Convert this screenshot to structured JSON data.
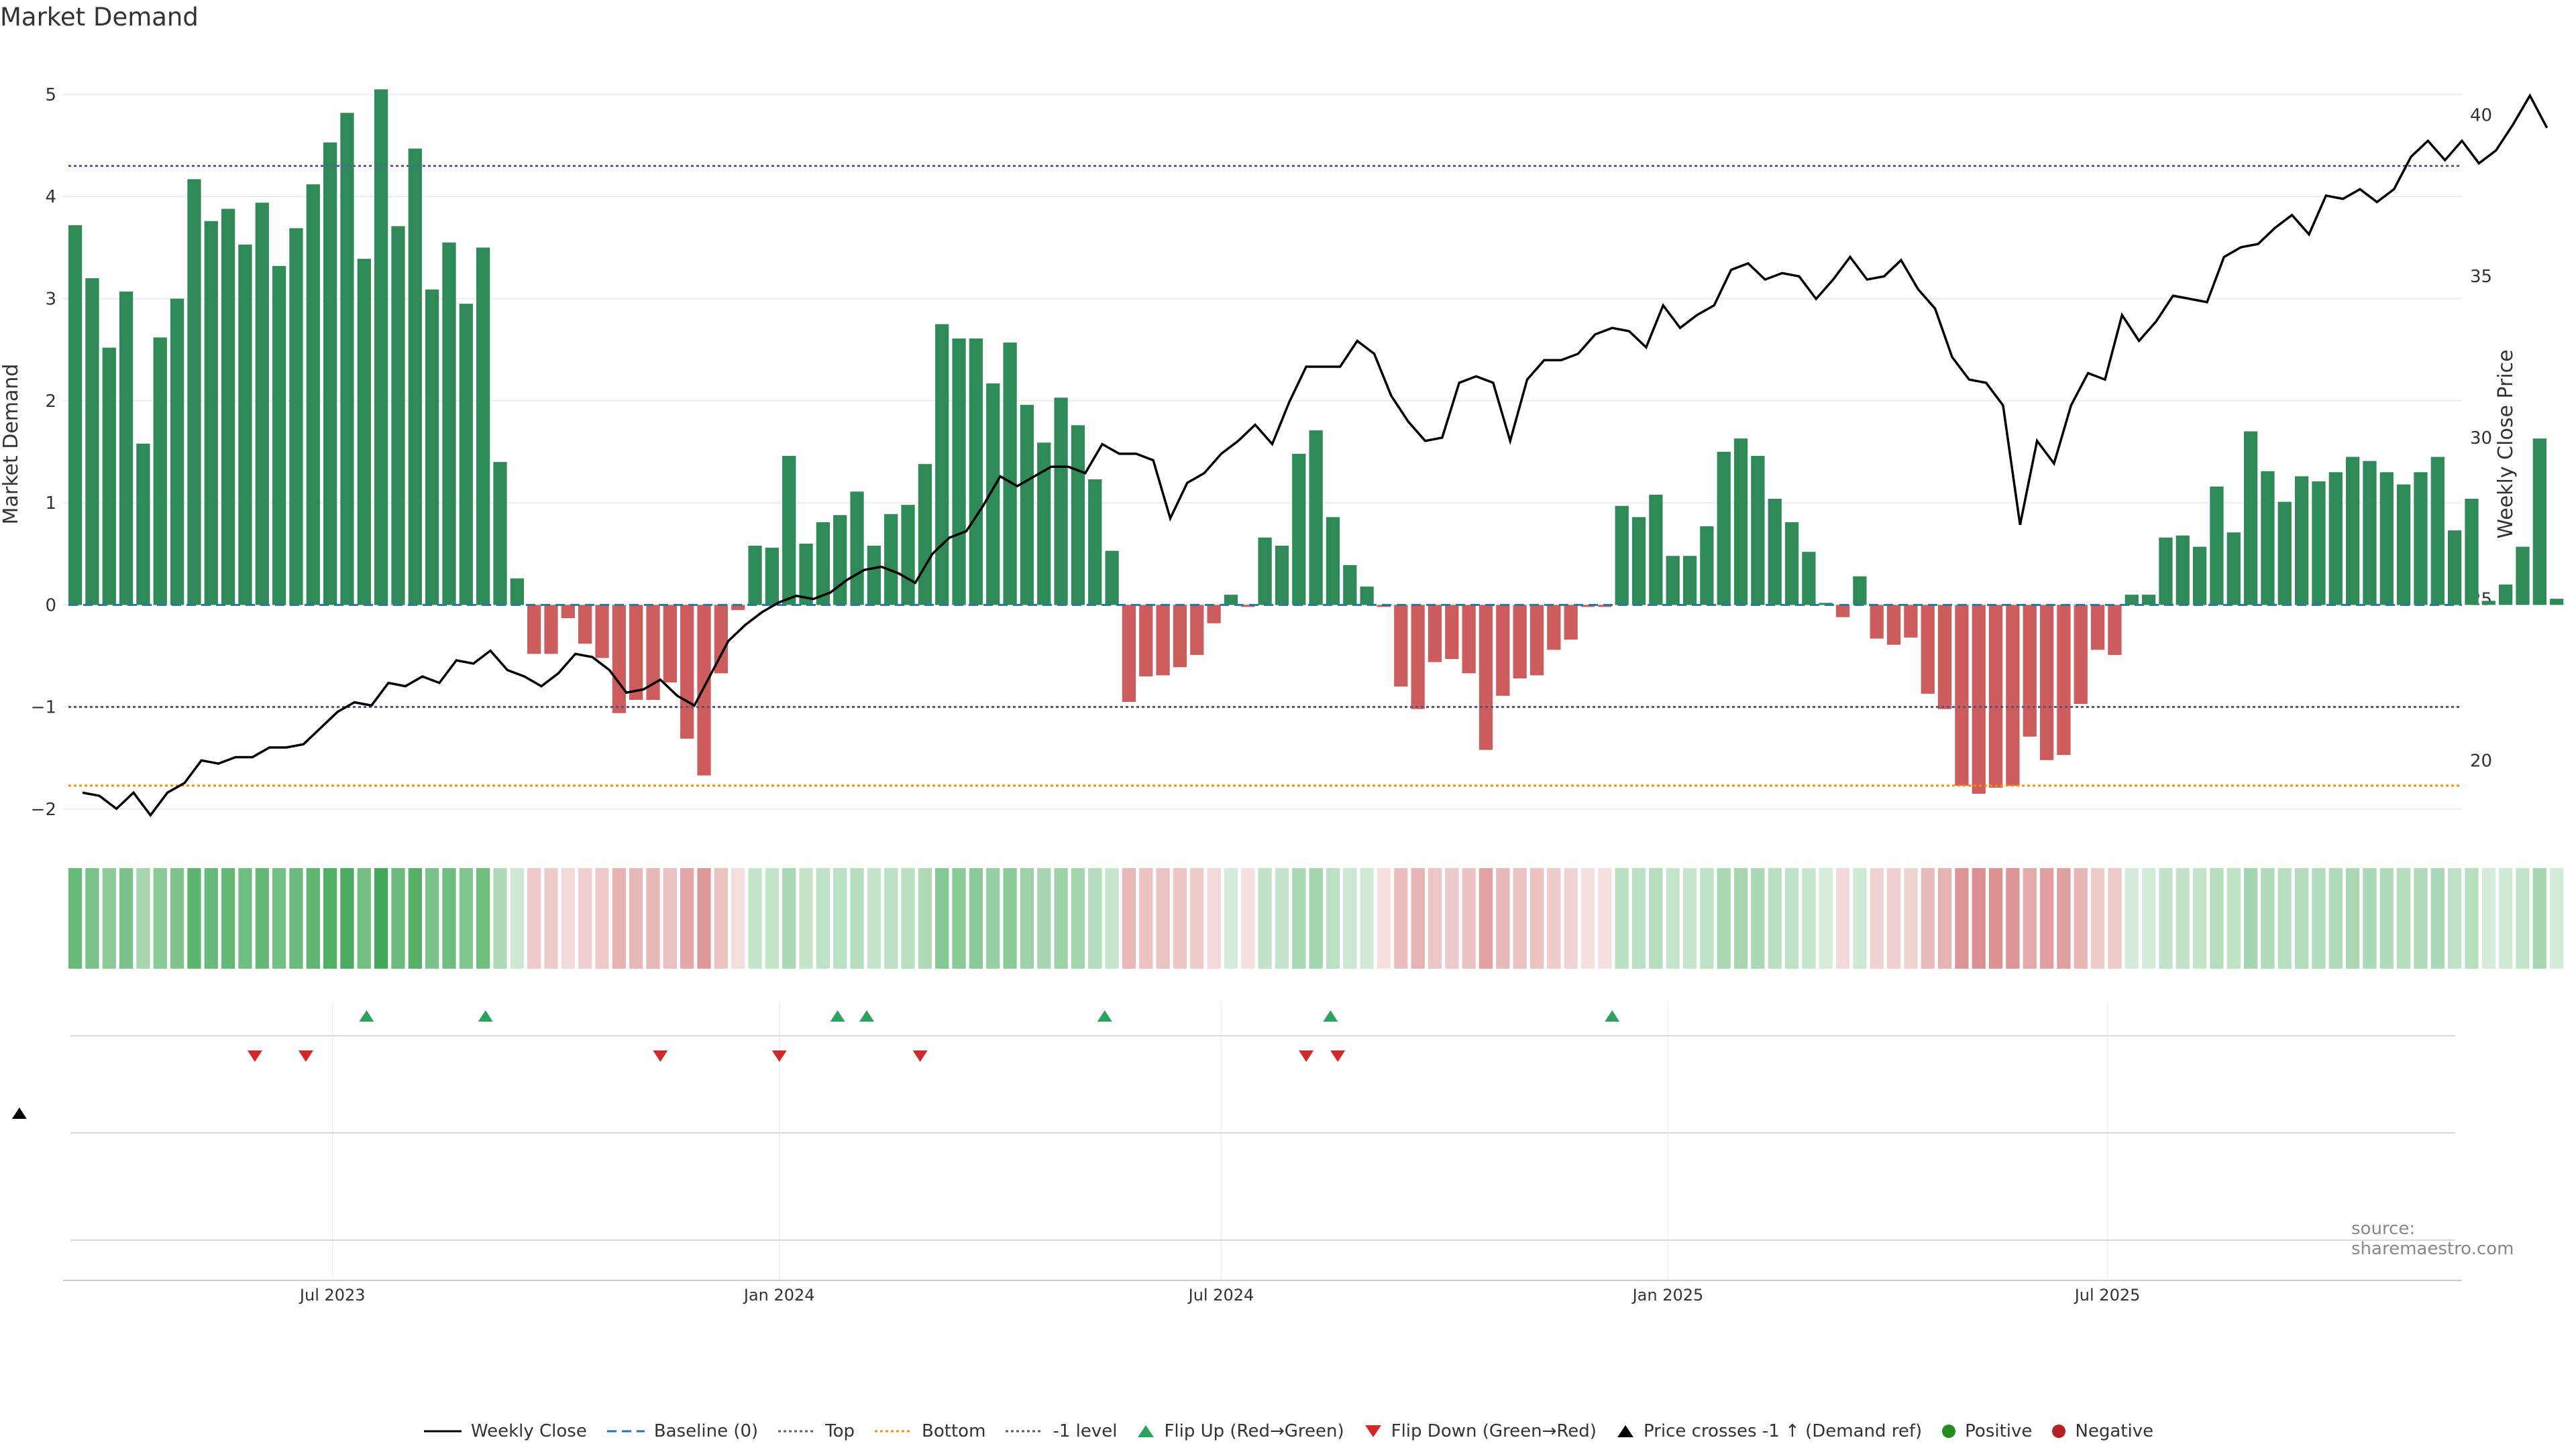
{
  "title": "Market Demand",
  "source_note": "source: sharemaestro.com",
  "colors": {
    "positive_bar": "#2e8b57",
    "negative_bar": "#cd5c5c",
    "price_line": "#000000",
    "baseline": "#1f77b4",
    "top_line": "#5b5bb0",
    "bottom_line": "#ff8c00",
    "minus1_line": "#555577",
    "flip_up": "#2ca25f",
    "flip_down": "#d62728",
    "cross": "#000000",
    "grid": "#e8e8e8"
  },
  "chart_data": {
    "type": "bar",
    "title": "Market Demand",
    "ylabel": "Market Demand",
    "y2label": "Weekly Close Price",
    "ylim": [
      -2.25,
      5.4
    ],
    "y2lim": [
      17.7,
      41.9
    ],
    "yticks": [
      "−2",
      "−1",
      "0",
      "1",
      "2",
      "3",
      "4",
      "5"
    ],
    "y2ticks": [
      "20",
      "25",
      "30",
      "35",
      "40"
    ],
    "reference_lines": {
      "top": 4.3,
      "bottom": -1.77,
      "minus_one": -1.0,
      "baseline": 0
    },
    "x_range_days": [
      -111,
      877
    ],
    "x_date_origin": "2023-07-01",
    "xticks": [
      {
        "label": "Jul 2023",
        "day": 0
      },
      {
        "label": "Jan 2024",
        "day": 184
      },
      {
        "label": "Jul 2024",
        "day": 366
      },
      {
        "label": "Jan 2025",
        "day": 550
      },
      {
        "label": "Jul 2025",
        "day": 731
      }
    ],
    "week_interval_days": 7,
    "first_week_day": -106,
    "demand": [
      3.72,
      3.2,
      2.52,
      3.07,
      1.58,
      2.62,
      3.0,
      4.17,
      3.76,
      3.88,
      3.53,
      3.94,
      3.32,
      3.69,
      4.12,
      4.53,
      4.82,
      3.39,
      5.05,
      3.71,
      4.47,
      3.09,
      3.55,
      2.95,
      3.5,
      1.4,
      0.26,
      -0.48,
      -0.48,
      -0.13,
      -0.38,
      -0.52,
      -1.06,
      -0.93,
      -0.93,
      -0.76,
      -1.31,
      -1.67,
      -0.67,
      -0.05,
      0.58,
      0.56,
      1.46,
      0.6,
      0.81,
      0.88,
      1.11,
      0.58,
      0.89,
      0.98,
      1.38,
      2.75,
      2.61,
      2.61,
      2.17,
      2.57,
      1.96,
      1.59,
      2.03,
      1.76,
      1.23,
      0.53,
      -0.95,
      -0.7,
      -0.69,
      -0.61,
      -0.49,
      -0.18,
      0.1,
      -0.02,
      0.66,
      0.58,
      1.48,
      1.71,
      0.86,
      0.39,
      0.18,
      -0.02,
      -0.8,
      -1.02,
      -0.56,
      -0.53,
      -0.67,
      -1.42,
      -0.89,
      -0.72,
      -0.69,
      -0.44,
      -0.34,
      -0.02,
      -0.02,
      0.97,
      0.86,
      1.08,
      0.48,
      0.48,
      0.77,
      1.5,
      1.63,
      1.46,
      1.04,
      0.81,
      0.52,
      0.02,
      -0.12,
      0.28,
      -0.33,
      -0.39,
      -0.32,
      -0.87,
      -1.02,
      -1.77,
      -1.85,
      -1.79,
      -1.77,
      -1.29,
      -1.52,
      -1.47,
      -0.97,
      -0.44,
      -0.49,
      0.1,
      0.1,
      0.66,
      0.68,
      0.57,
      1.16,
      0.71,
      1.7,
      1.31,
      1.01,
      1.26,
      1.21,
      1.3,
      1.45,
      1.41,
      1.3,
      1.18,
      1.3,
      1.45,
      0.73,
      1.04,
      0.04,
      0.2,
      0.57,
      1.63,
      0.06
    ],
    "price_weeks_start_day": -103,
    "price": [
      19.0,
      18.9,
      18.5,
      19.0,
      18.3,
      19.0,
      19.3,
      20.0,
      19.9,
      20.1,
      20.1,
      20.4,
      20.4,
      20.5,
      21.0,
      21.5,
      21.8,
      21.7,
      22.4,
      22.3,
      22.6,
      22.4,
      23.1,
      23.0,
      23.4,
      22.8,
      22.6,
      22.3,
      22.7,
      23.3,
      23.2,
      22.8,
      22.1,
      22.2,
      22.5,
      22.0,
      21.7,
      22.7,
      23.7,
      24.2,
      24.6,
      24.9,
      25.1,
      25.0,
      25.2,
      25.6,
      25.9,
      26.0,
      25.8,
      25.5,
      26.4,
      26.9,
      27.1,
      27.9,
      28.8,
      28.5,
      28.8,
      29.1,
      29.1,
      28.9,
      29.8,
      29.5,
      29.5,
      29.3,
      27.5,
      28.6,
      28.9,
      29.5,
      29.9,
      30.4,
      29.8,
      31.1,
      32.2,
      32.2,
      32.2,
      33.0,
      32.6,
      31.3,
      30.5,
      29.9,
      30.0,
      31.7,
      31.9,
      31.7,
      29.9,
      31.8,
      32.4,
      32.4,
      32.6,
      33.2,
      33.4,
      33.3,
      32.8,
      34.1,
      33.4,
      33.8,
      34.1,
      35.2,
      35.4,
      34.9,
      35.1,
      35.0,
      34.3,
      34.9,
      35.6,
      34.9,
      35.0,
      35.5,
      34.6,
      34.0,
      32.5,
      31.8,
      31.7,
      31.0,
      27.3,
      29.9,
      29.2,
      31.0,
      32.0,
      31.8,
      33.8,
      33.0,
      33.6,
      34.4,
      34.3,
      34.2,
      35.6,
      35.9,
      36.0,
      36.5,
      36.9,
      36.3,
      37.5,
      37.4,
      37.7,
      37.3,
      37.7,
      38.7,
      39.2,
      38.6,
      39.2,
      38.5,
      38.9,
      39.7,
      40.6,
      39.6
    ],
    "flip_up_days": [
      14,
      63,
      208,
      220,
      318,
      411,
      527
    ],
    "flip_down_days": [
      -32,
      -11,
      135,
      184,
      242,
      401,
      414
    ],
    "price_cross_days": [
      -129
    ],
    "color_strip_note": "weekly intensity strip mirrors demand sign and magnitude"
  },
  "legend": [
    {
      "label": "Weekly Close",
      "icon": "solid-line"
    },
    {
      "label": "Baseline (0)",
      "icon": "dashed-line"
    },
    {
      "label": "Top",
      "icon": "dotted-line"
    },
    {
      "label": "Bottom",
      "icon": "dotted-line"
    },
    {
      "label": "-1 level",
      "icon": "dotted-line"
    },
    {
      "label": "Flip Up (Red→Green)",
      "icon": "triangle-up"
    },
    {
      "label": "Flip Down (Green→Red)",
      "icon": "triangle-down"
    },
    {
      "label": "Price crosses -1 ↑ (Demand ref)",
      "icon": "triangle-up"
    },
    {
      "label": "Positive",
      "icon": "circle"
    },
    {
      "label": "Negative",
      "icon": "circle"
    }
  ]
}
